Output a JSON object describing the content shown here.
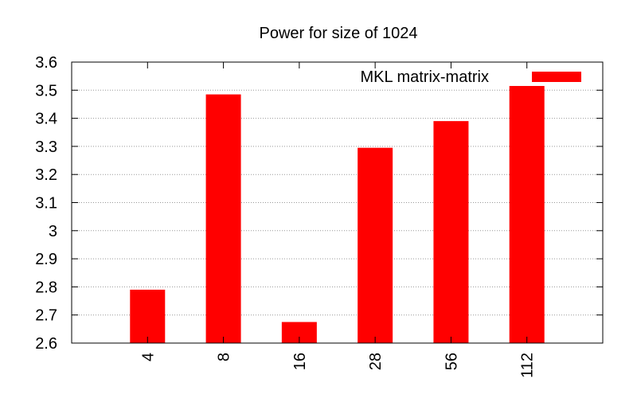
{
  "chart_data": {
    "type": "bar",
    "title": "Power for size of 1024",
    "xlabel": "",
    "ylabel": "",
    "categories": [
      "4",
      "8",
      "16",
      "28",
      "56",
      "112"
    ],
    "series": [
      {
        "name": "MKL matrix-matrix",
        "values": [
          2.79,
          3.485,
          2.675,
          3.295,
          3.39,
          3.515
        ],
        "color": "#ff0000"
      }
    ],
    "ylim": [
      2.6,
      3.6
    ],
    "yticks": [
      "2.6",
      "2.7",
      "2.8",
      "2.9",
      "3",
      "3.1",
      "3.2",
      "3.3",
      "3.4",
      "3.5",
      "3.6"
    ],
    "grid": true,
    "legend_position": "top-right"
  }
}
